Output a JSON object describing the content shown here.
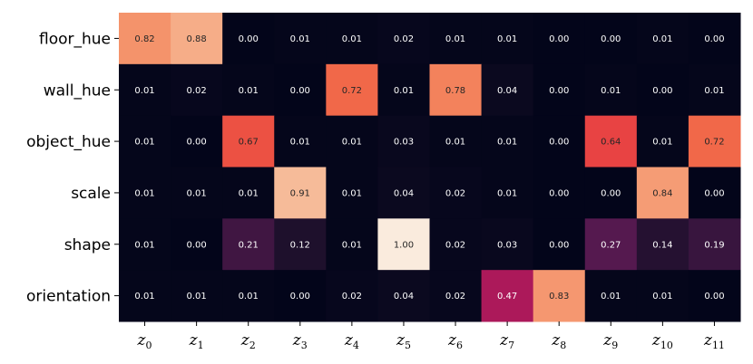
{
  "chart_data": {
    "type": "heatmap",
    "title": "",
    "xlabel": "",
    "ylabel": "",
    "rows": [
      "floor_hue",
      "wall_hue",
      "object_hue",
      "scale",
      "shape",
      "orientation"
    ],
    "columns": [
      {
        "base": "z",
        "sub": "0"
      },
      {
        "base": "z",
        "sub": "1"
      },
      {
        "base": "z",
        "sub": "2"
      },
      {
        "base": "z",
        "sub": "3"
      },
      {
        "base": "z",
        "sub": "4"
      },
      {
        "base": "z",
        "sub": "5"
      },
      {
        "base": "z",
        "sub": "6"
      },
      {
        "base": "z",
        "sub": "7"
      },
      {
        "base": "z",
        "sub": "8"
      },
      {
        "base": "z",
        "sub": "9"
      },
      {
        "base": "z",
        "sub": "10"
      },
      {
        "base": "z",
        "sub": "11"
      }
    ],
    "values": [
      [
        0.82,
        0.88,
        0.0,
        0.01,
        0.01,
        0.02,
        0.01,
        0.01,
        0.0,
        0.0,
        0.01,
        0.0
      ],
      [
        0.01,
        0.02,
        0.01,
        0.0,
        0.72,
        0.01,
        0.78,
        0.04,
        0.0,
        0.01,
        0.0,
        0.01
      ],
      [
        0.01,
        0.0,
        0.67,
        0.01,
        0.01,
        0.03,
        0.01,
        0.01,
        0.0,
        0.64,
        0.01,
        0.72
      ],
      [
        0.01,
        0.01,
        0.01,
        0.91,
        0.01,
        0.04,
        0.02,
        0.01,
        0.0,
        0.0,
        0.84,
        0.0
      ],
      [
        0.01,
        0.0,
        0.21,
        0.12,
        0.01,
        1.0,
        0.02,
        0.03,
        0.0,
        0.27,
        0.14,
        0.19
      ],
      [
        0.01,
        0.01,
        0.01,
        0.0,
        0.02,
        0.04,
        0.02,
        0.47,
        0.83,
        0.01,
        0.01,
        0.0
      ]
    ],
    "value_range": [
      0,
      1
    ],
    "colormap": "rocket",
    "value_format": "2 decimals"
  }
}
